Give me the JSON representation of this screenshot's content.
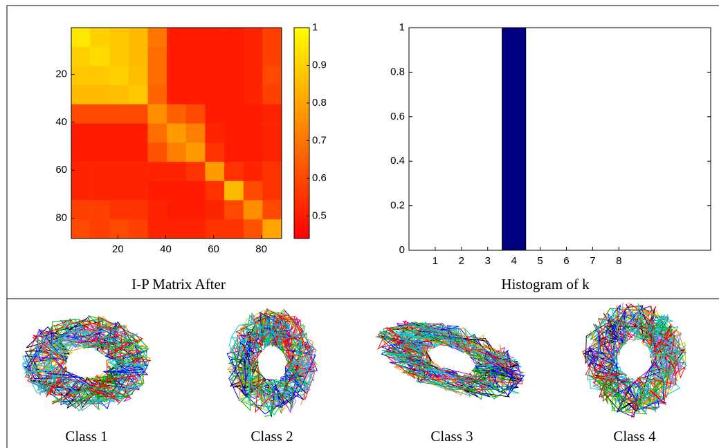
{
  "chart_data": [
    {
      "type": "heatmap",
      "title": "I-P Matrix After",
      "x": [
        4.5,
        12.5,
        20.5,
        28.5,
        36.5,
        44.5,
        52.5,
        60.5,
        68.5,
        76.5,
        84.5
      ],
      "y": [
        4.5,
        12.5,
        20.5,
        28.5,
        36.5,
        44.5,
        52.5,
        60.5,
        68.5,
        76.5,
        84.5
      ],
      "values": [
        [
          0.95,
          0.9,
          0.88,
          0.85,
          0.7,
          0.5,
          0.5,
          0.5,
          0.5,
          0.52,
          0.58
        ],
        [
          0.9,
          0.92,
          0.88,
          0.85,
          0.68,
          0.5,
          0.5,
          0.5,
          0.5,
          0.52,
          0.58
        ],
        [
          0.88,
          0.88,
          0.9,
          0.86,
          0.68,
          0.5,
          0.5,
          0.5,
          0.5,
          0.52,
          0.6
        ],
        [
          0.85,
          0.85,
          0.86,
          0.88,
          0.66,
          0.5,
          0.5,
          0.5,
          0.5,
          0.52,
          0.58
        ],
        [
          0.6,
          0.6,
          0.6,
          0.6,
          0.75,
          0.65,
          0.6,
          0.5,
          0.5,
          0.5,
          0.52
        ],
        [
          0.5,
          0.5,
          0.5,
          0.5,
          0.68,
          0.78,
          0.72,
          0.52,
          0.5,
          0.5,
          0.52
        ],
        [
          0.5,
          0.5,
          0.5,
          0.5,
          0.62,
          0.72,
          0.78,
          0.55,
          0.5,
          0.5,
          0.52
        ],
        [
          0.52,
          0.52,
          0.52,
          0.52,
          0.52,
          0.52,
          0.55,
          0.78,
          0.55,
          0.52,
          0.55
        ],
        [
          0.52,
          0.52,
          0.52,
          0.52,
          0.5,
          0.5,
          0.5,
          0.55,
          0.85,
          0.6,
          0.55
        ],
        [
          0.58,
          0.58,
          0.55,
          0.55,
          0.52,
          0.5,
          0.5,
          0.52,
          0.6,
          0.75,
          0.6
        ],
        [
          0.6,
          0.58,
          0.6,
          0.58,
          0.52,
          0.52,
          0.52,
          0.55,
          0.55,
          0.62,
          0.8
        ]
      ],
      "xlim": [
        0.5,
        88.5
      ],
      "ylim": [
        0.5,
        88.5
      ],
      "y_reversed": true,
      "xticks": [
        20,
        40,
        60,
        80
      ],
      "yticks": [
        20,
        40,
        60,
        80
      ],
      "colormap": [
        "#ff0000",
        "#ffff00"
      ],
      "clim": [
        0.44,
        1
      ],
      "cticks": [
        0.5,
        0.6,
        0.7,
        0.8,
        0.9,
        1
      ]
    },
    {
      "type": "bar",
      "title": "Histogram of k",
      "x": [
        1,
        2,
        3,
        4,
        5,
        6,
        7,
        8
      ],
      "values": [
        0,
        0,
        0,
        1,
        0,
        0,
        0,
        0
      ],
      "color": "#000080",
      "bar_width": 0.9,
      "xlim": [
        0,
        11.5
      ],
      "ylim": [
        0,
        1
      ],
      "xticks": [
        1,
        2,
        3,
        4,
        5,
        6,
        7,
        8
      ],
      "yticks": [
        0,
        0.2,
        0.4,
        0.6,
        0.8,
        1
      ]
    }
  ],
  "captions": [
    "Class 1",
    "Class 2",
    "Class 3",
    "Class 4"
  ]
}
